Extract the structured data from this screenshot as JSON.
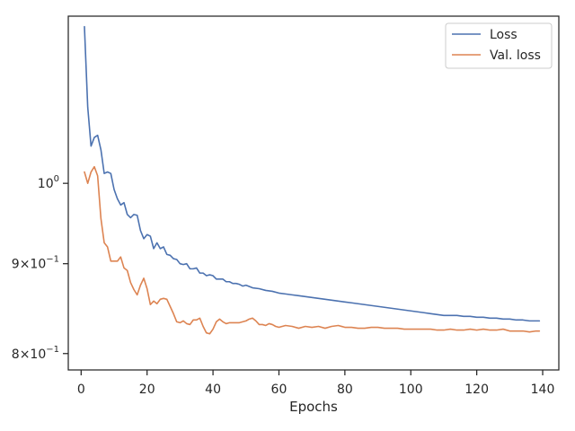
{
  "chart_data": {
    "type": "line",
    "xlabel": "Epochs",
    "ylabel": "",
    "xlim": [
      -3.9,
      144.9
    ],
    "ylim": [
      0.783,
      1.245
    ],
    "yscale": "log",
    "grid": false,
    "legend_position": "top-right",
    "x_ticks": [
      {
        "value": 0,
        "label": "0"
      },
      {
        "value": 20,
        "label": "20"
      },
      {
        "value": 40,
        "label": "40"
      },
      {
        "value": 60,
        "label": "60"
      },
      {
        "value": 80,
        "label": "80"
      },
      {
        "value": 100,
        "label": "100"
      },
      {
        "value": 120,
        "label": "120"
      },
      {
        "value": 140,
        "label": "140"
      }
    ],
    "y_ticks": [
      {
        "value": 1.0,
        "mantissa": "",
        "base": "10",
        "exp": "0"
      },
      {
        "value": 0.9,
        "mantissa": "9×",
        "base": "10",
        "exp": "−1"
      },
      {
        "value": 0.8,
        "mantissa": "8×",
        "base": "10",
        "exp": "−1"
      }
    ],
    "series": [
      {
        "name": "Loss",
        "color": "#4c72b0",
        "points": [
          [
            1,
            1.228
          ],
          [
            2,
            1.105
          ],
          [
            3,
            1.05
          ],
          [
            4,
            1.062
          ],
          [
            5,
            1.065
          ],
          [
            6,
            1.045
          ],
          [
            7,
            1.013
          ],
          [
            8,
            1.015
          ],
          [
            9,
            1.013
          ],
          [
            10,
            0.992
          ],
          [
            11,
            0.98
          ],
          [
            12,
            0.972
          ],
          [
            13,
            0.975
          ],
          [
            14,
            0.96
          ],
          [
            15,
            0.956
          ],
          [
            16,
            0.96
          ],
          [
            17,
            0.959
          ],
          [
            18,
            0.94
          ],
          [
            19,
            0.93
          ],
          [
            20,
            0.935
          ],
          [
            21,
            0.933
          ],
          [
            22,
            0.918
          ],
          [
            23,
            0.925
          ],
          [
            24,
            0.918
          ],
          [
            25,
            0.92
          ],
          [
            26,
            0.911
          ],
          [
            27,
            0.91
          ],
          [
            28,
            0.906
          ],
          [
            29,
            0.905
          ],
          [
            30,
            0.9
          ],
          [
            31,
            0.899
          ],
          [
            32,
            0.9
          ],
          [
            33,
            0.894
          ],
          [
            34,
            0.894
          ],
          [
            35,
            0.895
          ],
          [
            36,
            0.889
          ],
          [
            37,
            0.889
          ],
          [
            38,
            0.886
          ],
          [
            39,
            0.887
          ],
          [
            40,
            0.886
          ],
          [
            41,
            0.882
          ],
          [
            42,
            0.882
          ],
          [
            43,
            0.882
          ],
          [
            44,
            0.879
          ],
          [
            45,
            0.879
          ],
          [
            46,
            0.877
          ],
          [
            47,
            0.877
          ],
          [
            48,
            0.876
          ],
          [
            49,
            0.874
          ],
          [
            50,
            0.875
          ],
          [
            52,
            0.872
          ],
          [
            54,
            0.871
          ],
          [
            56,
            0.869
          ],
          [
            58,
            0.868
          ],
          [
            60,
            0.866
          ],
          [
            62,
            0.865
          ],
          [
            64,
            0.864
          ],
          [
            66,
            0.863
          ],
          [
            68,
            0.862
          ],
          [
            70,
            0.861
          ],
          [
            72,
            0.86
          ],
          [
            74,
            0.859
          ],
          [
            76,
            0.858
          ],
          [
            78,
            0.857
          ],
          [
            80,
            0.856
          ],
          [
            82,
            0.855
          ],
          [
            84,
            0.854
          ],
          [
            86,
            0.853
          ],
          [
            88,
            0.852
          ],
          [
            90,
            0.851
          ],
          [
            92,
            0.85
          ],
          [
            94,
            0.849
          ],
          [
            96,
            0.848
          ],
          [
            98,
            0.847
          ],
          [
            100,
            0.846
          ],
          [
            102,
            0.845
          ],
          [
            104,
            0.844
          ],
          [
            106,
            0.843
          ],
          [
            108,
            0.842
          ],
          [
            110,
            0.841
          ],
          [
            112,
            0.841
          ],
          [
            114,
            0.841
          ],
          [
            116,
            0.84
          ],
          [
            118,
            0.84
          ],
          [
            120,
            0.839
          ],
          [
            122,
            0.839
          ],
          [
            124,
            0.838
          ],
          [
            126,
            0.838
          ],
          [
            128,
            0.837
          ],
          [
            130,
            0.837
          ],
          [
            132,
            0.836
          ],
          [
            134,
            0.836
          ],
          [
            136,
            0.835
          ],
          [
            138,
            0.835
          ],
          [
            139,
            0.835
          ]
        ]
      },
      {
        "name": "Val. loss",
        "color": "#dd8452",
        "points": [
          [
            1,
            1.015
          ],
          [
            2,
            1.0
          ],
          [
            3,
            1.015
          ],
          [
            4,
            1.022
          ],
          [
            5,
            1.01
          ],
          [
            6,
            0.955
          ],
          [
            7,
            0.925
          ],
          [
            8,
            0.92
          ],
          [
            9,
            0.903
          ],
          [
            10,
            0.903
          ],
          [
            11,
            0.903
          ],
          [
            12,
            0.908
          ],
          [
            13,
            0.895
          ],
          [
            14,
            0.892
          ],
          [
            15,
            0.878
          ],
          [
            16,
            0.87
          ],
          [
            17,
            0.864
          ],
          [
            18,
            0.875
          ],
          [
            19,
            0.883
          ],
          [
            20,
            0.871
          ],
          [
            21,
            0.853
          ],
          [
            22,
            0.857
          ],
          [
            23,
            0.854
          ],
          [
            24,
            0.859
          ],
          [
            25,
            0.86
          ],
          [
            26,
            0.859
          ],
          [
            27,
            0.851
          ],
          [
            28,
            0.843
          ],
          [
            29,
            0.834
          ],
          [
            30,
            0.833
          ],
          [
            31,
            0.835
          ],
          [
            32,
            0.832
          ],
          [
            33,
            0.831
          ],
          [
            34,
            0.836
          ],
          [
            35,
            0.836
          ],
          [
            36,
            0.838
          ],
          [
            37,
            0.829
          ],
          [
            38,
            0.822
          ],
          [
            39,
            0.821
          ],
          [
            40,
            0.826
          ],
          [
            41,
            0.834
          ],
          [
            42,
            0.837
          ],
          [
            43,
            0.834
          ],
          [
            44,
            0.832
          ],
          [
            45,
            0.833
          ],
          [
            46,
            0.833
          ],
          [
            47,
            0.833
          ],
          [
            48,
            0.833
          ],
          [
            49,
            0.834
          ],
          [
            50,
            0.835
          ],
          [
            51,
            0.837
          ],
          [
            52,
            0.838
          ],
          [
            53,
            0.835
          ],
          [
            54,
            0.831
          ],
          [
            55,
            0.831
          ],
          [
            56,
            0.83
          ],
          [
            57,
            0.832
          ],
          [
            58,
            0.831
          ],
          [
            59,
            0.829
          ],
          [
            60,
            0.828
          ],
          [
            62,
            0.83
          ],
          [
            64,
            0.829
          ],
          [
            66,
            0.827
          ],
          [
            68,
            0.829
          ],
          [
            70,
            0.828
          ],
          [
            72,
            0.829
          ],
          [
            74,
            0.827
          ],
          [
            76,
            0.829
          ],
          [
            78,
            0.83
          ],
          [
            80,
            0.828
          ],
          [
            82,
            0.828
          ],
          [
            84,
            0.827
          ],
          [
            86,
            0.827
          ],
          [
            88,
            0.828
          ],
          [
            90,
            0.828
          ],
          [
            92,
            0.827
          ],
          [
            94,
            0.827
          ],
          [
            96,
            0.827
          ],
          [
            98,
            0.826
          ],
          [
            100,
            0.826
          ],
          [
            102,
            0.826
          ],
          [
            104,
            0.826
          ],
          [
            106,
            0.826
          ],
          [
            108,
            0.825
          ],
          [
            110,
            0.825
          ],
          [
            112,
            0.826
          ],
          [
            114,
            0.825
          ],
          [
            116,
            0.825
          ],
          [
            118,
            0.826
          ],
          [
            120,
            0.825
          ],
          [
            122,
            0.826
          ],
          [
            124,
            0.825
          ],
          [
            126,
            0.825
          ],
          [
            128,
            0.826
          ],
          [
            130,
            0.824
          ],
          [
            132,
            0.824
          ],
          [
            134,
            0.824
          ],
          [
            136,
            0.823
          ],
          [
            138,
            0.824
          ],
          [
            139,
            0.824
          ]
        ]
      }
    ]
  }
}
